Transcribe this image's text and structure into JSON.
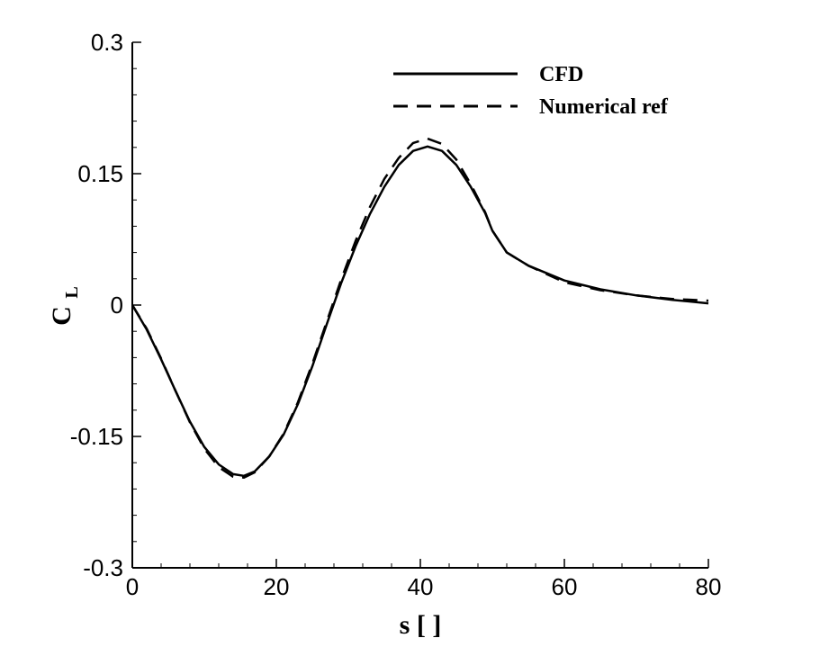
{
  "chart_data": {
    "type": "line",
    "title": "",
    "xlabel": "s [ ]",
    "ylabel_main": "C",
    "ylabel_sub": "L",
    "xlim": [
      0,
      80
    ],
    "ylim": [
      -0.3,
      0.3
    ],
    "xticks": [
      0,
      20,
      40,
      60,
      80
    ],
    "xtick_labels": [
      "0",
      "20",
      "40",
      "60",
      "80"
    ],
    "yticks": [
      -0.3,
      -0.15,
      0,
      0.15,
      0.3
    ],
    "ytick_labels": [
      "-0.3",
      "-0.15",
      "0",
      "0.15",
      "0.3"
    ],
    "grid": false,
    "legend_position": "top-right",
    "series": [
      {
        "name": "CFD",
        "style": "solid",
        "color": "#000000",
        "x": [
          0,
          2,
          4,
          6,
          8,
          10,
          12,
          14,
          15.5,
          17,
          19,
          21,
          23,
          25,
          27,
          29,
          31,
          33,
          35,
          37,
          39,
          41,
          43,
          45,
          47,
          49,
          50,
          52,
          55,
          60,
          65,
          70,
          75,
          80
        ],
        "y": [
          0,
          -0.028,
          -0.062,
          -0.098,
          -0.133,
          -0.162,
          -0.182,
          -0.193,
          -0.195,
          -0.19,
          -0.173,
          -0.148,
          -0.113,
          -0.07,
          -0.022,
          0.025,
          0.067,
          0.104,
          0.135,
          0.16,
          0.176,
          0.181,
          0.176,
          0.16,
          0.135,
          0.105,
          0.085,
          0.06,
          0.045,
          0.028,
          0.018,
          0.011,
          0.006,
          0.002
        ]
      },
      {
        "name": "Numerical ref",
        "style": "dashed",
        "color": "#000000",
        "x": [
          0,
          2,
          4,
          6,
          8,
          10,
          12,
          14,
          15.5,
          17,
          19,
          21,
          23,
          25,
          27,
          29,
          31,
          33,
          35,
          37,
          39,
          41,
          43,
          45,
          47,
          49,
          50,
          52,
          55,
          60,
          65,
          70,
          75,
          80
        ],
        "y": [
          0,
          -0.027,
          -0.061,
          -0.098,
          -0.134,
          -0.164,
          -0.185,
          -0.196,
          -0.197,
          -0.191,
          -0.173,
          -0.147,
          -0.111,
          -0.067,
          -0.019,
          0.029,
          0.073,
          0.112,
          0.144,
          0.168,
          0.185,
          0.19,
          0.184,
          0.166,
          0.138,
          0.106,
          0.085,
          0.06,
          0.045,
          0.026,
          0.017,
          0.011,
          0.007,
          0.005
        ]
      }
    ]
  }
}
